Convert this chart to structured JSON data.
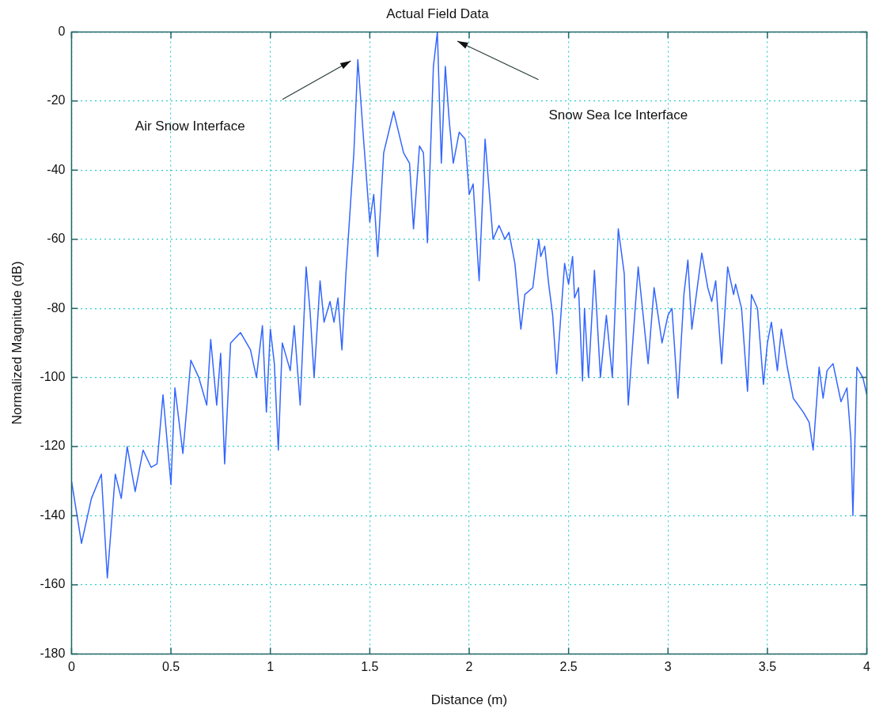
{
  "chart_data": {
    "type": "line",
    "title": "Actual Field Data",
    "xlabel": "Distance (m)",
    "ylabel": "Normalized Magnitude (dB)",
    "x": [
      0,
      0.05,
      0.1,
      0.15,
      0.18,
      0.22,
      0.25,
      0.28,
      0.32,
      0.36,
      0.4,
      0.43,
      0.46,
      0.5,
      0.52,
      0.56,
      0.6,
      0.64,
      0.68,
      0.7,
      0.73,
      0.75,
      0.77,
      0.8,
      0.85,
      0.9,
      0.93,
      0.96,
      0.98,
      1.0,
      1.02,
      1.04,
      1.06,
      1.1,
      1.12,
      1.15,
      1.18,
      1.2,
      1.22,
      1.25,
      1.27,
      1.3,
      1.32,
      1.34,
      1.36,
      1.38,
      1.42,
      1.44,
      1.47,
      1.5,
      1.52,
      1.54,
      1.57,
      1.62,
      1.67,
      1.7,
      1.72,
      1.75,
      1.77,
      1.79,
      1.82,
      1.84,
      1.86,
      1.88,
      1.9,
      1.92,
      1.95,
      1.98,
      2.0,
      2.02,
      2.05,
      2.08,
      2.12,
      2.15,
      2.18,
      2.2,
      2.23,
      2.26,
      2.28,
      2.32,
      2.35,
      2.36,
      2.38,
      2.4,
      2.42,
      2.44,
      2.48,
      2.5,
      2.52,
      2.53,
      2.55,
      2.57,
      2.58,
      2.6,
      2.63,
      2.66,
      2.69,
      2.72,
      2.75,
      2.78,
      2.8,
      2.85,
      2.9,
      2.93,
      2.97,
      3.0,
      3.02,
      3.05,
      3.08,
      3.1,
      3.12,
      3.17,
      3.2,
      3.22,
      3.24,
      3.27,
      3.3,
      3.33,
      3.34,
      3.37,
      3.4,
      3.42,
      3.45,
      3.48,
      3.5,
      3.52,
      3.55,
      3.57,
      3.6,
      3.63,
      3.68,
      3.71,
      3.73,
      3.76,
      3.78,
      3.8,
      3.83,
      3.87,
      3.9,
      3.92,
      3.93,
      3.95,
      3.98,
      4.0
    ],
    "series": [
      {
        "color": "#3366ff",
        "values": [
          -130,
          -148,
          -135,
          -128,
          -158,
          -128,
          -135,
          -120,
          -133,
          -121,
          -126,
          -125,
          -105,
          -131,
          -103,
          -122,
          -95,
          -100,
          -108,
          -89,
          -108,
          -93,
          -125,
          -90,
          -87,
          -92,
          -100,
          -85,
          -110,
          -86,
          -96,
          -121,
          -90,
          -98,
          -85,
          -108,
          -68,
          -81,
          -100,
          -72,
          -84,
          -78,
          -84,
          -77,
          -92,
          -70,
          -35,
          -8,
          -32,
          -55,
          -47,
          -65,
          -35,
          -23,
          -35,
          -38,
          -57,
          -33,
          -35,
          -61,
          -10,
          0,
          -38,
          -10,
          -26,
          -38,
          -29,
          -31,
          -47,
          -44,
          -72,
          -31,
          -60,
          -56,
          -60,
          -58,
          -67,
          -86,
          -76,
          -74,
          -60,
          -65,
          -62,
          -73,
          -82,
          -99,
          -67,
          -73,
          -65,
          -77,
          -74,
          -101,
          -80,
          -100,
          -69,
          -100,
          -82,
          -100,
          -57,
          -70,
          -108,
          -68,
          -96,
          -74,
          -90,
          -82,
          -80,
          -106,
          -76,
          -66,
          -86,
          -64,
          -74,
          -78,
          -72,
          -96,
          -68,
          -76,
          -73,
          -80,
          -104,
          -76,
          -80,
          -102,
          -90,
          -84,
          -98,
          -86,
          -97,
          -106,
          -110,
          -113,
          -121,
          -97,
          -106,
          -98,
          -96,
          -107,
          -103,
          -118,
          -140,
          -97,
          -100,
          -105
        ]
      }
    ],
    "xlim": [
      0,
      4
    ],
    "xticks": [
      0,
      0.5,
      1,
      1.5,
      2,
      2.5,
      3,
      3.5,
      4
    ],
    "ylim": [
      -180,
      0
    ],
    "yticks": [
      -180,
      -160,
      -140,
      -120,
      -100,
      -80,
      -60,
      -40,
      -20,
      0
    ],
    "grid": true,
    "line_style": "solid",
    "marker": "none",
    "legend": false,
    "annotations": [
      "Air Snow Interface",
      "Snow Sea Ice Interface"
    ]
  }
}
